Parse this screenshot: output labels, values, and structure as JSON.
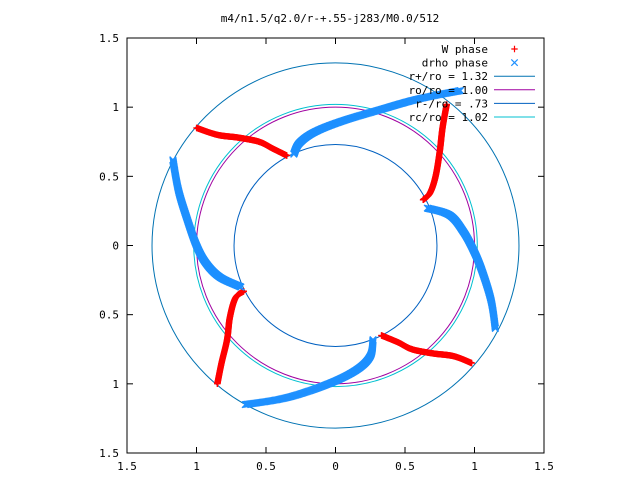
{
  "chart_data": {
    "type": "scatter",
    "title": "m4/n1.5/q2.0/r-+.55-j283/M0.0/512",
    "xlabel": "",
    "ylabel": "",
    "xlim": [
      -1.5,
      1.5
    ],
    "ylim": [
      -1.5,
      1.5
    ],
    "x_ticks": [
      -1.5,
      -1,
      -0.5,
      0,
      0.5,
      1,
      1.5
    ],
    "y_ticks": [
      -1.5,
      -1,
      -0.5,
      0,
      0.5,
      1,
      1.5
    ],
    "x_tick_labels": [
      "1.5",
      "1",
      "0.5",
      "0",
      "0.5",
      "1",
      "1.5"
    ],
    "y_tick_labels": [
      "1.5",
      "1",
      "0.5",
      "0",
      "0.5",
      "1",
      "1.5"
    ],
    "grid": false,
    "legend_position": "top-right",
    "circles": [
      {
        "name": "r+/ro = 1.32",
        "radius": 1.32,
        "color": "#0072b2"
      },
      {
        "name": "ro/ro = 1.00",
        "radius": 1.0,
        "color": "#a000a0"
      },
      {
        "name": "r-/ro = .73",
        "radius": 0.73,
        "color": "#0060c0"
      },
      {
        "name": "rc/ro = 1.02",
        "radius": 1.02,
        "color": "#00c0d0"
      }
    ],
    "series": [
      {
        "name": "W phase",
        "marker": "+",
        "color": "#ff0000",
        "arms": [
          [
            [
              -1.0,
              0.85
            ],
            [
              -0.85,
              0.8
            ],
            [
              -0.7,
              0.78
            ],
            [
              -0.55,
              0.75
            ],
            [
              -0.45,
              0.7
            ],
            [
              -0.35,
              0.65
            ]
          ],
          [
            [
              0.8,
              1.02
            ],
            [
              0.77,
              0.85
            ],
            [
              0.75,
              0.68
            ],
            [
              0.72,
              0.5
            ],
            [
              0.68,
              0.38
            ],
            [
              0.63,
              0.33
            ]
          ],
          [
            [
              0.98,
              -0.85
            ],
            [
              0.85,
              -0.8
            ],
            [
              0.7,
              -0.78
            ],
            [
              0.55,
              -0.75
            ],
            [
              0.45,
              -0.7
            ],
            [
              0.33,
              -0.65
            ]
          ],
          [
            [
              -0.85,
              -1.0
            ],
            [
              -0.82,
              -0.85
            ],
            [
              -0.78,
              -0.68
            ],
            [
              -0.76,
              -0.52
            ],
            [
              -0.72,
              -0.38
            ],
            [
              -0.66,
              -0.33
            ]
          ]
        ]
      },
      {
        "name": "drho phase",
        "marker": "x",
        "color": "#1e90ff",
        "arms": [
          [
            [
              -1.17,
              0.62
            ],
            [
              -1.13,
              0.4
            ],
            [
              -1.07,
              0.2
            ],
            [
              -1.0,
              0.0
            ],
            [
              -0.93,
              -0.13
            ],
            [
              -0.83,
              -0.23
            ],
            [
              -0.68,
              -0.3
            ]
          ],
          [
            [
              0.9,
              1.12
            ],
            [
              0.6,
              1.06
            ],
            [
              0.35,
              0.99
            ],
            [
              0.05,
              0.9
            ],
            [
              -0.15,
              0.82
            ],
            [
              -0.26,
              0.74
            ],
            [
              -0.3,
              0.66
            ]
          ],
          [
            [
              1.15,
              -0.6
            ],
            [
              1.12,
              -0.4
            ],
            [
              1.06,
              -0.2
            ],
            [
              1.0,
              -0.05
            ],
            [
              0.92,
              0.1
            ],
            [
              0.82,
              0.22
            ],
            [
              0.66,
              0.27
            ]
          ],
          [
            [
              -0.65,
              -1.15
            ],
            [
              -0.35,
              -1.1
            ],
            [
              -0.05,
              -1.0
            ],
            [
              0.15,
              -0.9
            ],
            [
              0.25,
              -0.8
            ],
            [
              0.27,
              -0.68
            ]
          ]
        ]
      }
    ]
  }
}
